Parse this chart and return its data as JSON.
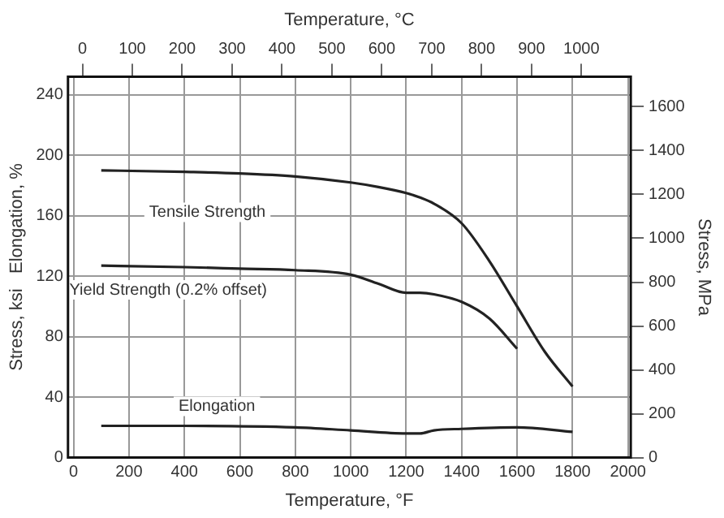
{
  "chart_data": {
    "type": "line",
    "xlabel": "Temperature, °F",
    "x2label": "Temperature, °C",
    "ylabel": "Stress, ksi   Elongation, %",
    "y2label": "Stress, MPa",
    "xlim": [
      -20,
      2010
    ],
    "xticks": [
      0,
      200,
      400,
      600,
      800,
      1000,
      1200,
      1400,
      1600,
      1800,
      2000
    ],
    "x2lim": [
      -28.9,
      1098.9
    ],
    "x2ticks": [
      0,
      100,
      200,
      300,
      400,
      500,
      600,
      700,
      800,
      900,
      1000
    ],
    "ylim": [
      0,
      252
    ],
    "yticks": [
      0,
      40,
      80,
      120,
      160,
      200,
      240
    ],
    "y2lim": [
      0,
      1737
    ],
    "y2ticks": [
      0,
      200,
      400,
      600,
      800,
      1000,
      1200,
      1400,
      1600
    ],
    "grid": true,
    "legend": false,
    "marker": "none",
    "line_style": "solid",
    "series": [
      {
        "name": "Tensile Strength",
        "color": "#222222",
        "x": [
          100,
          400,
          600,
          800,
          1000,
          1100,
          1200,
          1250,
          1300,
          1400,
          1500,
          1600,
          1700,
          1800
        ],
        "values": [
          190,
          189,
          188,
          186,
          182,
          179,
          175,
          172,
          168,
          155,
          130,
          100,
          70,
          47
        ]
      },
      {
        "name": "Yield Strength (0.2% offset)",
        "color": "#222222",
        "x": [
          100,
          400,
          600,
          800,
          1000,
          1100,
          1200,
          1250,
          1300,
          1400,
          1500,
          1600
        ],
        "values": [
          127,
          126,
          125,
          124,
          121,
          115,
          109,
          109,
          108,
          103,
          92,
          72
        ]
      },
      {
        "name": "Elongation",
        "color": "#222222",
        "x": [
          100,
          400,
          800,
          1000,
          1200,
          1250,
          1300,
          1400,
          1600,
          1800
        ],
        "values": [
          21,
          21,
          20,
          18,
          16,
          16,
          18,
          19,
          20,
          17
        ]
      }
    ]
  }
}
